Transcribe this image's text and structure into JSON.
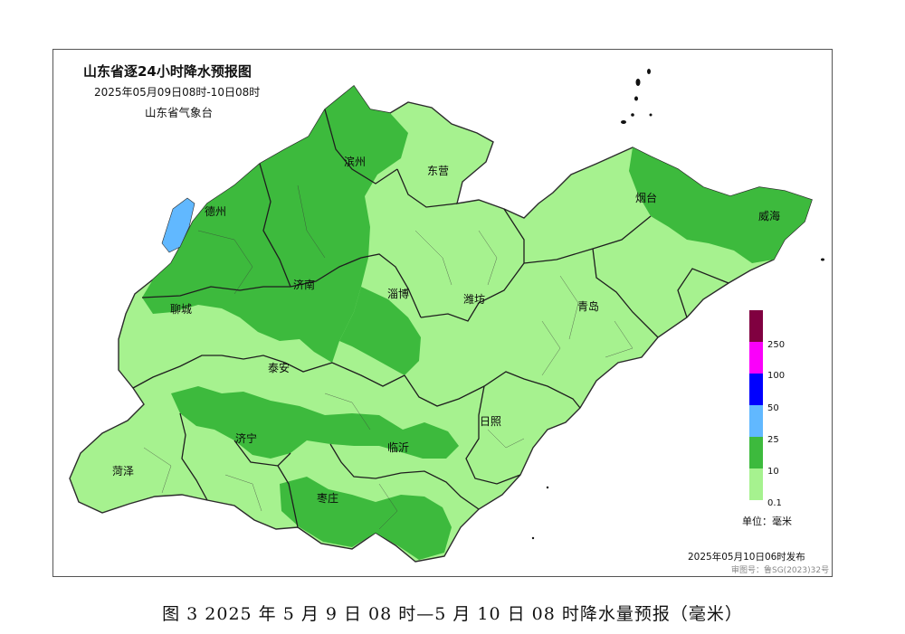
{
  "map": {
    "title": "山东省逐24小时降水预报图",
    "period": "2025年05月09日08时-10日08时",
    "agency": "山东省气象台",
    "unit_label": "单位：毫米",
    "publish_text": "2025年05月10日06时发布",
    "publish_subtext": "审图号：鲁SG(2023)32号",
    "cities": [
      {
        "name": "滨州"
      },
      {
        "name": "东营"
      },
      {
        "name": "烟台"
      },
      {
        "name": "威海"
      },
      {
        "name": "德州"
      },
      {
        "name": "济南"
      },
      {
        "name": "淄博"
      },
      {
        "name": "潍坊"
      },
      {
        "name": "聊城"
      },
      {
        "name": "青岛"
      },
      {
        "name": "泰安"
      },
      {
        "name": "济宁"
      },
      {
        "name": "日照"
      },
      {
        "name": "临沂"
      },
      {
        "name": "菏泽"
      },
      {
        "name": "枣庄"
      }
    ],
    "legend": {
      "levels": [
        "0.1",
        "10",
        "25",
        "50",
        "100",
        "250"
      ],
      "colors": [
        "#a6f28f",
        "#3dba3d",
        "#61b8ff",
        "#0000fe",
        "#fa00fa",
        "#800040"
      ]
    }
  },
  "caption": "图 3 2025 年 5 月 9 日 08 时—5 月 10 日 08 时降水量预报（毫米）"
}
